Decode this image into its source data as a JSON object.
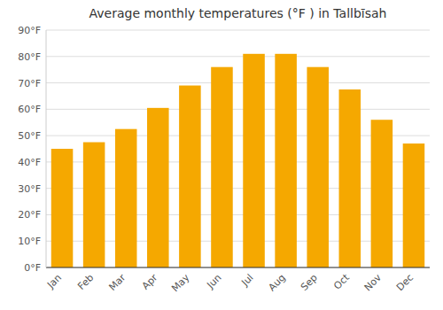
{
  "chart_data": {
    "type": "bar",
    "title": "Average monthly temperatures (°F ) in Tallbīsah",
    "categories": [
      "Jan",
      "Feb",
      "Mar",
      "Apr",
      "May",
      "Jun",
      "Jul",
      "Aug",
      "Sep",
      "Oct",
      "Nov",
      "Dec"
    ],
    "values": [
      45,
      47.5,
      52.5,
      60.5,
      69,
      76,
      81,
      81,
      76,
      67.5,
      56,
      47
    ],
    "color": "#F5A800",
    "ylim": [
      0,
      90
    ],
    "yticks": [
      {
        "value": 0,
        "label": "0°F"
      },
      {
        "value": 10,
        "label": "10°F"
      },
      {
        "value": 20,
        "label": "20°F"
      },
      {
        "value": 30,
        "label": "30°F"
      },
      {
        "value": 40,
        "label": "40°F"
      },
      {
        "value": 50,
        "label": "50°F"
      },
      {
        "value": 60,
        "label": "60°F"
      },
      {
        "value": 70,
        "label": "70°F"
      },
      {
        "value": 80,
        "label": "80°F"
      },
      {
        "value": 90,
        "label": "90°F"
      }
    ],
    "grid": true
  }
}
